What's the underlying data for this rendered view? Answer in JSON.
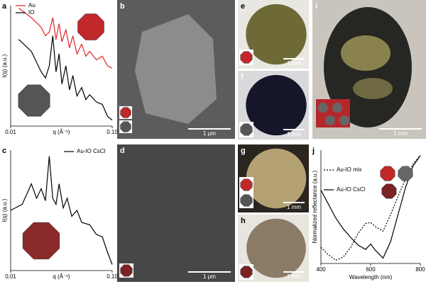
{
  "chart_data": [
    {
      "type": "line",
      "label": "a",
      "ylabel": "I(q) (a.u.)",
      "xlabel": "q (Å⁻¹)",
      "xscale": "log",
      "xlim": [
        0.01,
        0.1
      ],
      "xticks": [
        0.01,
        {
          "value": 0.1,
          "label": "0.10"
        }
      ],
      "ylim": [
        0,
        1
      ],
      "x": [
        0.012,
        0.016,
        0.02,
        0.022,
        0.024,
        0.026,
        0.028,
        0.03,
        0.032,
        0.035,
        0.038,
        0.041,
        0.045,
        0.05,
        0.055,
        0.06,
        0.07,
        0.08,
        0.09,
        0.1
      ],
      "series": [
        {
          "name": "Au",
          "color": "#e02424",
          "values": [
            0.98,
            0.9,
            0.82,
            0.75,
            0.78,
            0.9,
            0.72,
            0.85,
            0.7,
            0.8,
            0.65,
            0.75,
            0.6,
            0.68,
            0.58,
            0.62,
            0.55,
            0.58,
            0.5,
            0.48
          ]
        },
        {
          "name": "IO",
          "color": "#000000",
          "values": [
            0.72,
            0.62,
            0.45,
            0.4,
            0.5,
            0.75,
            0.45,
            0.6,
            0.35,
            0.5,
            0.3,
            0.42,
            0.25,
            0.32,
            0.22,
            0.26,
            0.2,
            0.18,
            0.08,
            0.05
          ]
        }
      ]
    },
    {
      "type": "line",
      "label": "c",
      "ylabel": "I(q) (a.u.)",
      "xlabel": "q (Å⁻¹)",
      "xscale": "log",
      "xlim": [
        0.01,
        0.1
      ],
      "xticks": [
        0.01,
        {
          "value": 0.1,
          "label": "0.10"
        }
      ],
      "ylim": [
        0,
        1
      ],
      "x": [
        0.01,
        0.013,
        0.016,
        0.018,
        0.02,
        0.022,
        0.024,
        0.026,
        0.028,
        0.03,
        0.033,
        0.036,
        0.04,
        0.045,
        0.05,
        0.06,
        0.07,
        0.08,
        0.09,
        0.1
      ],
      "series": [
        {
          "name": "Au-IO CsCl",
          "color": "#000000",
          "values": [
            0.5,
            0.55,
            0.72,
            0.6,
            0.68,
            0.58,
            0.95,
            0.6,
            0.55,
            0.72,
            0.52,
            0.6,
            0.45,
            0.5,
            0.4,
            0.38,
            0.3,
            0.28,
            0.15,
            0.05
          ]
        }
      ]
    },
    {
      "type": "line",
      "label": "j",
      "ylabel": "Normalized reflectance (a.u.)",
      "xlabel": "Wavelength (nm)",
      "xlim": [
        400,
        800
      ],
      "xticks": [
        400,
        600,
        800
      ],
      "ylim": [
        0,
        1.05
      ],
      "x": [
        400,
        430,
        460,
        490,
        520,
        550,
        580,
        600,
        620,
        650,
        680,
        710,
        740,
        770,
        800
      ],
      "series": [
        {
          "name": "Au-IO mix",
          "color": "#000000",
          "dash": true,
          "values": [
            0.15,
            0.08,
            0.03,
            0.06,
            0.15,
            0.28,
            0.37,
            0.38,
            0.34,
            0.3,
            0.45,
            0.62,
            0.78,
            0.92,
            1
          ]
        },
        {
          "name": "Au-IO CsCl",
          "color": "#000000",
          "values": [
            0.68,
            0.55,
            0.42,
            0.32,
            0.24,
            0.17,
            0.13,
            0.18,
            0.12,
            0.05,
            0.2,
            0.45,
            0.7,
            0.9,
            1
          ]
        }
      ]
    }
  ],
  "images": [
    {
      "label": "b",
      "scale_bar": "1 µm"
    },
    {
      "label": "d",
      "scale_bar": "1 µm"
    },
    {
      "label": "e",
      "scale_bar": "1 mm"
    },
    {
      "label": "f",
      "scale_bar": "1 mm"
    },
    {
      "label": "g",
      "scale_bar": "1 mm"
    },
    {
      "label": "h",
      "scale_bar": "1 mm"
    },
    {
      "label": "i",
      "scale_bar": "1 mm"
    }
  ]
}
